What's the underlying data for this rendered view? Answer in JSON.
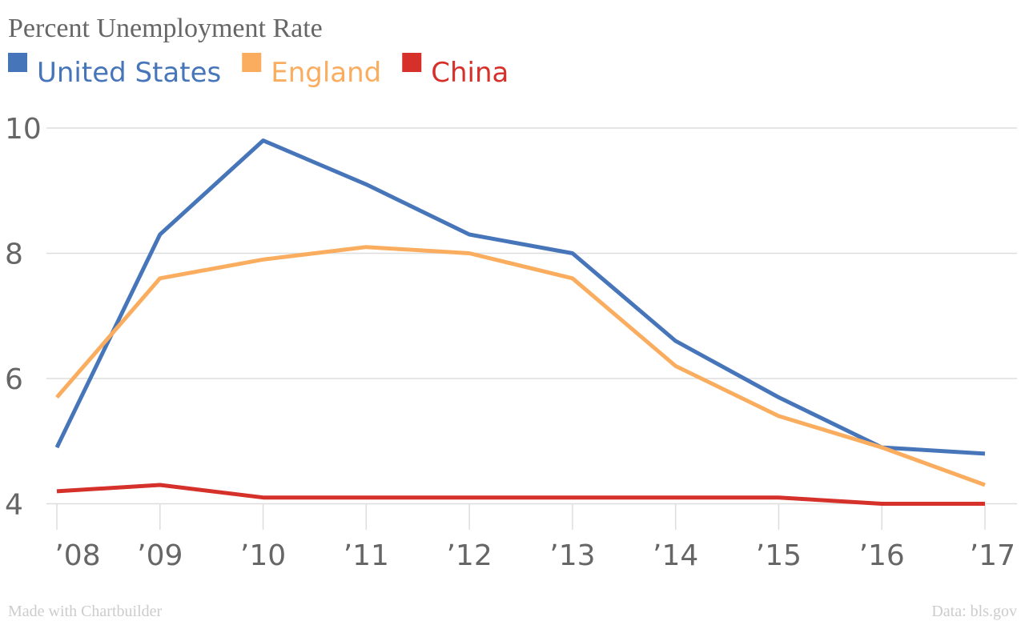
{
  "chart_data": {
    "type": "line",
    "title": "Percent Unemployment Rate",
    "categories": [
      "’08",
      "’09",
      "’10",
      "’11",
      "’12",
      "’13",
      "’14",
      "’15",
      "’16",
      "’17"
    ],
    "y_ticks": [
      "10",
      "8",
      "6",
      "4"
    ],
    "ylim": [
      4,
      10
    ],
    "grid": true,
    "legend_position": "top-left",
    "series": [
      {
        "name": "United States",
        "color": "#4675b9",
        "values": [
          4.9,
          8.3,
          9.8,
          9.1,
          8.3,
          8.0,
          6.6,
          5.7,
          4.9,
          4.8
        ]
      },
      {
        "name": "England",
        "color": "#fbad5f",
        "values": [
          5.7,
          7.6,
          7.9,
          8.1,
          8.0,
          7.6,
          6.2,
          5.4,
          4.9,
          4.3
        ]
      },
      {
        "name": "China",
        "color": "#d6302a",
        "values": [
          4.2,
          4.3,
          4.1,
          4.1,
          4.1,
          4.1,
          4.1,
          4.1,
          4.0,
          4.0
        ]
      }
    ]
  },
  "footer": {
    "made_with": "Made with Chartbuilder",
    "source": "Data: bls.gov"
  }
}
